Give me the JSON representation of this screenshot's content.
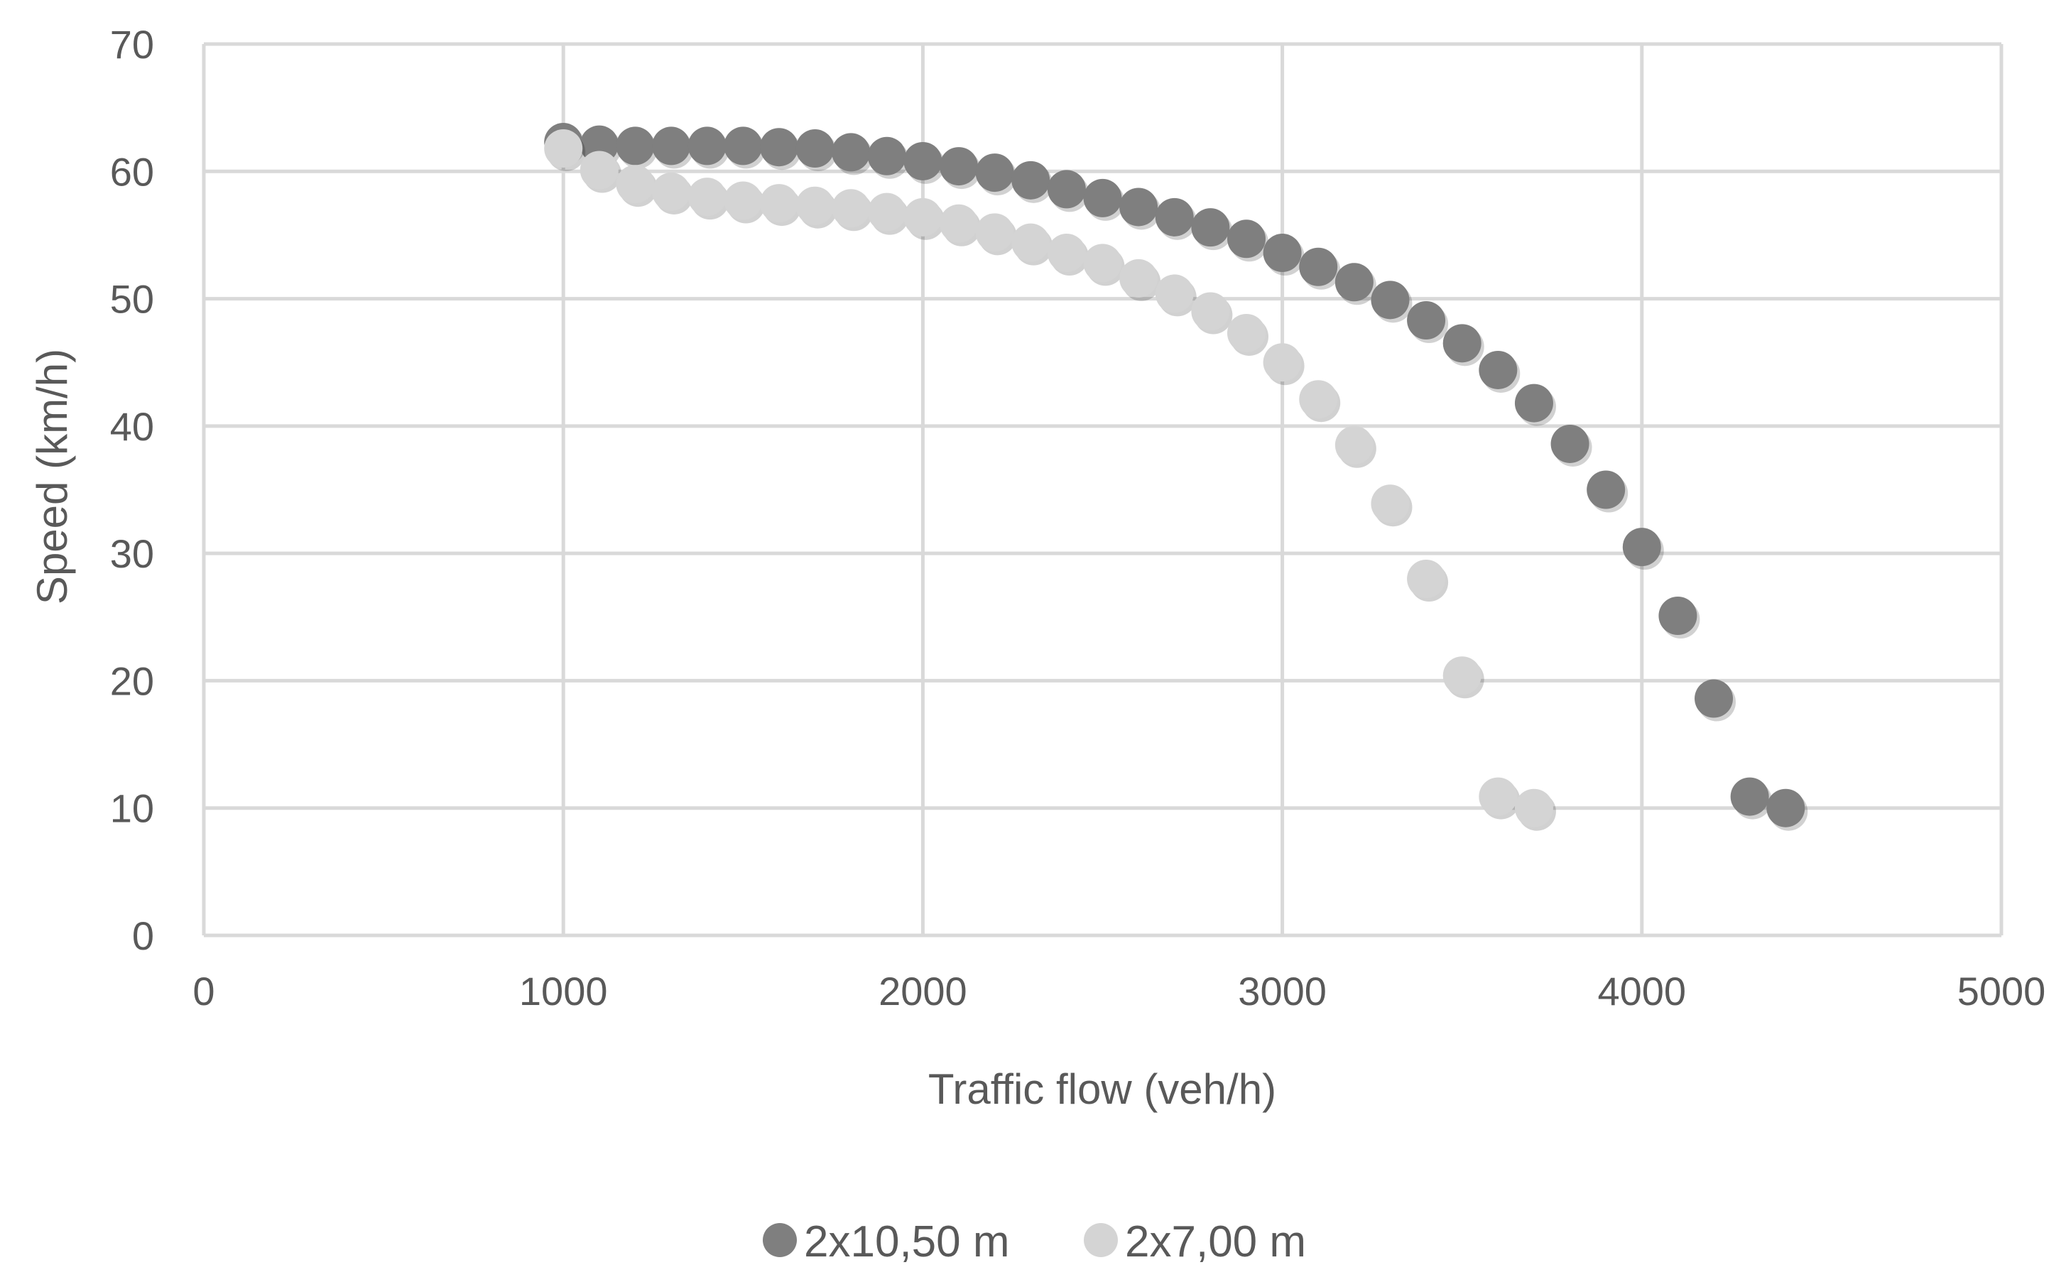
{
  "chart_data": {
    "type": "scatter",
    "title": "",
    "xlabel": "Traffic flow (veh/h)",
    "ylabel": "Speed (km/h)",
    "xlim": [
      0,
      5000
    ],
    "ylim": [
      0,
      70
    ],
    "xticks": [
      0,
      1000,
      2000,
      3000,
      4000,
      5000
    ],
    "yticks": [
      0,
      10,
      20,
      30,
      40,
      50,
      60,
      70
    ],
    "grid": true,
    "legend_position": "bottom",
    "series": [
      {
        "name": "2x10,50 m",
        "color": "#7f7f7f",
        "points": [
          {
            "x": 1000,
            "y": 62.3
          },
          {
            "x": 1100,
            "y": 62.1
          },
          {
            "x": 1200,
            "y": 62.0
          },
          {
            "x": 1300,
            "y": 62.0
          },
          {
            "x": 1400,
            "y": 62.0
          },
          {
            "x": 1500,
            "y": 62.0
          },
          {
            "x": 1600,
            "y": 61.9
          },
          {
            "x": 1700,
            "y": 61.8
          },
          {
            "x": 1800,
            "y": 61.5
          },
          {
            "x": 1900,
            "y": 61.2
          },
          {
            "x": 2000,
            "y": 60.8
          },
          {
            "x": 2100,
            "y": 60.4
          },
          {
            "x": 2200,
            "y": 59.9
          },
          {
            "x": 2300,
            "y": 59.3
          },
          {
            "x": 2400,
            "y": 58.6
          },
          {
            "x": 2500,
            "y": 57.9
          },
          {
            "x": 2600,
            "y": 57.2
          },
          {
            "x": 2700,
            "y": 56.4
          },
          {
            "x": 2800,
            "y": 55.6
          },
          {
            "x": 2900,
            "y": 54.7
          },
          {
            "x": 3000,
            "y": 53.6
          },
          {
            "x": 3100,
            "y": 52.5
          },
          {
            "x": 3200,
            "y": 51.3
          },
          {
            "x": 3300,
            "y": 49.9
          },
          {
            "x": 3400,
            "y": 48.3
          },
          {
            "x": 3500,
            "y": 46.5
          },
          {
            "x": 3600,
            "y": 44.4
          },
          {
            "x": 3700,
            "y": 41.8
          },
          {
            "x": 3800,
            "y": 38.6
          },
          {
            "x": 3900,
            "y": 35.0
          },
          {
            "x": 4000,
            "y": 30.5
          },
          {
            "x": 4100,
            "y": 25.1
          },
          {
            "x": 4200,
            "y": 18.6
          },
          {
            "x": 4300,
            "y": 10.9
          },
          {
            "x": 4400,
            "y": 10.0
          }
        ]
      },
      {
        "name": "2x7,00 m",
        "color": "#d4d4d4",
        "points": [
          {
            "x": 1000,
            "y": 61.8
          },
          {
            "x": 1100,
            "y": 60.1
          },
          {
            "x": 1200,
            "y": 59.0
          },
          {
            "x": 1300,
            "y": 58.4
          },
          {
            "x": 1400,
            "y": 58.0
          },
          {
            "x": 1500,
            "y": 57.7
          },
          {
            "x": 1600,
            "y": 57.5
          },
          {
            "x": 1700,
            "y": 57.3
          },
          {
            "x": 1800,
            "y": 57.1
          },
          {
            "x": 1900,
            "y": 56.8
          },
          {
            "x": 2000,
            "y": 56.4
          },
          {
            "x": 2100,
            "y": 55.9
          },
          {
            "x": 2200,
            "y": 55.2
          },
          {
            "x": 2300,
            "y": 54.4
          },
          {
            "x": 2400,
            "y": 53.6
          },
          {
            "x": 2500,
            "y": 52.8
          },
          {
            "x": 2600,
            "y": 51.6
          },
          {
            "x": 2700,
            "y": 50.4
          },
          {
            "x": 2800,
            "y": 49.0
          },
          {
            "x": 2900,
            "y": 47.3
          },
          {
            "x": 3000,
            "y": 45.0
          },
          {
            "x": 3100,
            "y": 42.1
          },
          {
            "x": 3200,
            "y": 38.5
          },
          {
            "x": 3300,
            "y": 33.9
          },
          {
            "x": 3400,
            "y": 28.0
          },
          {
            "x": 3500,
            "y": 20.4
          },
          {
            "x": 3600,
            "y": 10.9
          },
          {
            "x": 3700,
            "y": 10.0
          }
        ]
      }
    ]
  }
}
